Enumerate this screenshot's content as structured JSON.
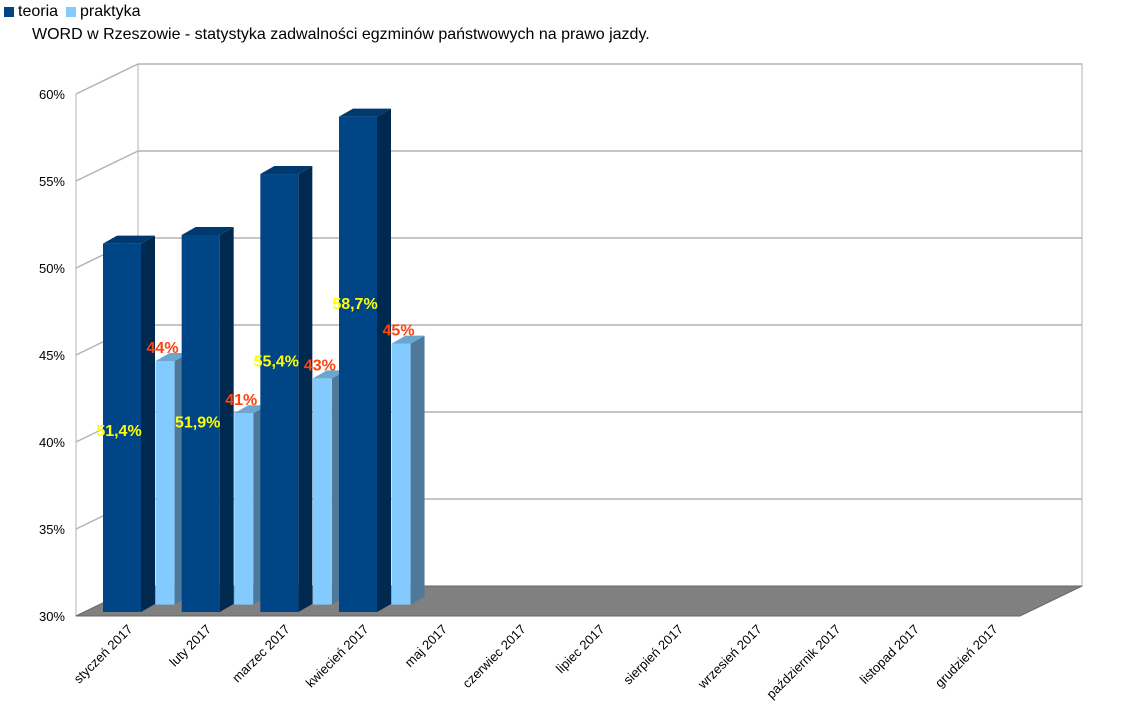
{
  "chart_data": {
    "type": "bar",
    "title": "WORD w Rzeszowie - statystyka zadwalności egzminów państwowych na prawo jazdy.",
    "categories": [
      "styczeń 2017",
      "luty 2017",
      "marzec 2017",
      "kwiecień 2017",
      "maj 2017",
      "czerwiec 2017",
      "lipiec 2017",
      "sierpień 2017",
      "wrzesień 2017",
      "październik 2017",
      "listopad 2017",
      "grudzień 2017"
    ],
    "series": [
      {
        "name": "teoria",
        "values": [
          51.4,
          51.9,
          55.4,
          58.7,
          null,
          null,
          null,
          null,
          null,
          null,
          null,
          null
        ],
        "labels": [
          "51,4%",
          "51,9%",
          "55,4%",
          "58,7%"
        ],
        "color": "#004586",
        "label_color": "#ffff00"
      },
      {
        "name": "praktyka",
        "values": [
          44,
          41,
          43,
          45,
          null,
          null,
          null,
          null,
          null,
          null,
          null,
          null
        ],
        "labels": [
          "44%",
          "41%",
          "43%",
          "45%"
        ],
        "color": "#83caff",
        "label_color": "#ff420e"
      }
    ],
    "yticks": [
      "30%",
      "35%",
      "40%",
      "45%",
      "50%",
      "55%",
      "60%"
    ],
    "ylim": [
      30,
      60
    ],
    "grid": true,
    "legend": "top-left",
    "three_d": true
  }
}
